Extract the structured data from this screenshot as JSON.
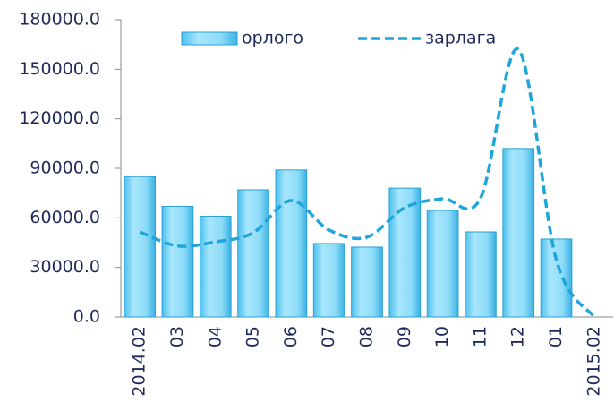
{
  "chart_data": {
    "type": "bar_line",
    "categories": [
      "2014.02",
      "03",
      "04",
      "05",
      "06",
      "07",
      "08",
      "09",
      "10",
      "11",
      "12",
      "01",
      "2015.02"
    ],
    "series": [
      {
        "name": "орлого",
        "type": "bar",
        "color": "#7fd6f7",
        "values": [
          85000,
          67000,
          61000,
          77000,
          89000,
          44500,
          42300,
          78000,
          64500,
          51500,
          102000,
          47200,
          null
        ]
      },
      {
        "name": "зарлага",
        "type": "line",
        "color": "#1ea6dc",
        "dashed": true,
        "values": [
          51500,
          43000,
          45500,
          51000,
          70500,
          52600,
          48300,
          66200,
          71600,
          72000,
          162000,
          34700,
          0
        ]
      }
    ],
    "ylim": [
      0,
      180000
    ],
    "yticks": [
      {
        "value": 0,
        "label": "0.0"
      },
      {
        "value": 30000,
        "label": "30000.0"
      },
      {
        "value": 60000,
        "label": "60000.0"
      },
      {
        "value": 90000,
        "label": "90000.0"
      },
      {
        "value": 120000,
        "label": "120000.0"
      },
      {
        "value": 150000,
        "label": "150000.0"
      },
      {
        "value": 180000,
        "label": "180000.0"
      }
    ],
    "grid": false,
    "legend": "top"
  }
}
